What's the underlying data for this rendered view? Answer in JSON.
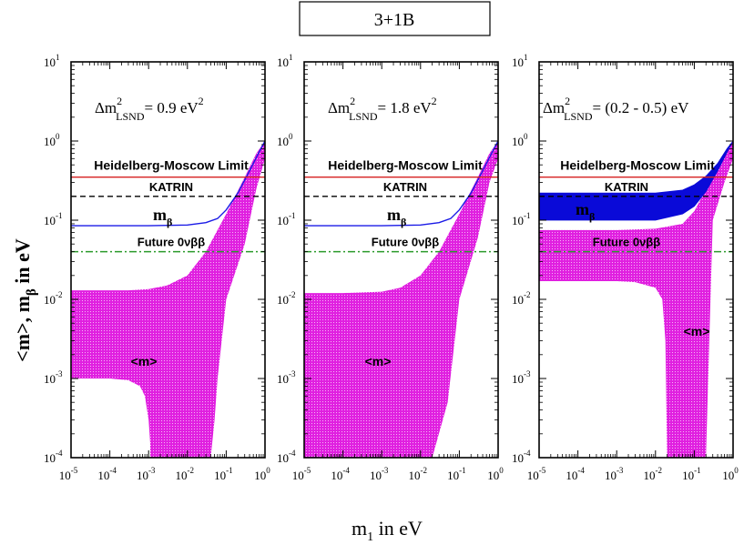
{
  "figure": {
    "title": "3+1B",
    "xlabel_main": "m",
    "xlabel_sub": "1",
    "xlabel_rest": " in eV",
    "ylabel_parts": [
      "<m>, m",
      "β",
      " in eV"
    ]
  },
  "chart_data": [
    {
      "type": "area",
      "panel": 1,
      "xscale": "log",
      "yscale": "log",
      "xlim": [
        1e-05,
        1
      ],
      "ylim": [
        0.0001,
        10
      ],
      "xticks": [
        1e-05,
        0.0001,
        0.001,
        0.01,
        0.1,
        1
      ],
      "yticks": [
        0.0001,
        0.001,
        0.01,
        0.1,
        1,
        10
      ],
      "annotation": {
        "prefix": "Δm",
        "sup": "2",
        "sub": "LSND",
        "value": "= 0.9 eV",
        "value_sup": "2"
      },
      "lines": [
        {
          "name": "Heidelberg-Moscow Limit",
          "y": 0.35,
          "color": "#d62020",
          "style": "solid"
        },
        {
          "name": "KATRIN",
          "y": 0.2,
          "color": "#000000",
          "style": "dashed"
        },
        {
          "name": "Future 0νββ",
          "y": 0.04,
          "color": "#2a9a2a",
          "style": "dashdot"
        }
      ],
      "mbeta": {
        "label": "m",
        "label_sub": "β",
        "type": "line",
        "color": "#1a1ae6",
        "x": [
          1e-05,
          0.001,
          0.01,
          0.03,
          0.06,
          0.1,
          0.2,
          0.4,
          0.7,
          1
        ],
        "y": [
          0.085,
          0.085,
          0.087,
          0.093,
          0.105,
          0.135,
          0.22,
          0.42,
          0.72,
          1.0
        ]
      },
      "mass_band": {
        "label": "<m>",
        "color": "#e020e0",
        "x_upper": [
          1e-05,
          0.0001,
          0.0003,
          0.001,
          0.003,
          0.01,
          0.03,
          0.1,
          0.3,
          0.6,
          1
        ],
        "y_upper": [
          0.013,
          0.013,
          0.013,
          0.0135,
          0.015,
          0.02,
          0.04,
          0.12,
          0.35,
          0.7,
          1.0
        ],
        "x_lower": [
          1e-05,
          0.0001,
          0.0003,
          0.0006,
          0.0008,
          0.001,
          0.0011,
          0.0011,
          0.04,
          0.05,
          0.06,
          0.1,
          0.3,
          0.6,
          1
        ],
        "y_lower": [
          0.001,
          0.001,
          0.00095,
          0.0008,
          0.0006,
          0.0003,
          0.00015,
          0.0001,
          0.0001,
          0.0003,
          0.001,
          0.01,
          0.05,
          0.25,
          0.6
        ]
      }
    },
    {
      "type": "area",
      "panel": 2,
      "xscale": "log",
      "yscale": "log",
      "xlim": [
        1e-05,
        1
      ],
      "ylim": [
        0.0001,
        10
      ],
      "xticks": [
        1e-05,
        0.0001,
        0.001,
        0.01,
        0.1,
        1
      ],
      "yticks": [
        0.0001,
        0.001,
        0.01,
        0.1,
        1,
        10
      ],
      "annotation": {
        "prefix": "Δm",
        "sup": "2",
        "sub": "LSND",
        "value": "= 1.8 eV",
        "value_sup": "2"
      },
      "lines": [
        {
          "name": "Heidelberg-Moscow Limit",
          "y": 0.35,
          "color": "#d62020",
          "style": "solid"
        },
        {
          "name": "KATRIN",
          "y": 0.2,
          "color": "#000000",
          "style": "dashed"
        },
        {
          "name": "Future 0νββ",
          "y": 0.04,
          "color": "#2a9a2a",
          "style": "dashdot"
        }
      ],
      "mbeta": {
        "label": "m",
        "label_sub": "β",
        "type": "line",
        "color": "#1a1ae6",
        "x": [
          1e-05,
          0.001,
          0.01,
          0.03,
          0.06,
          0.1,
          0.2,
          0.4,
          0.7,
          1
        ],
        "y": [
          0.085,
          0.085,
          0.087,
          0.093,
          0.105,
          0.135,
          0.22,
          0.42,
          0.72,
          1.0
        ]
      },
      "mass_band": {
        "label": "<m>",
        "color": "#e020e0",
        "x_upper": [
          1e-05,
          0.0001,
          0.001,
          0.003,
          0.01,
          0.03,
          0.1,
          0.3,
          0.6,
          1
        ],
        "y_upper": [
          0.012,
          0.012,
          0.0125,
          0.014,
          0.02,
          0.04,
          0.12,
          0.35,
          0.7,
          1.0
        ],
        "x_lower": [
          1e-05,
          0.0001,
          0.001,
          0.003,
          0.01,
          0.02,
          0.05,
          0.1,
          0.3,
          0.6,
          1
        ],
        "y_lower": [
          0.0001,
          0.0001,
          0.0001,
          0.0001,
          0.0001,
          0.0001,
          0.0005,
          0.01,
          0.06,
          0.3,
          0.6
        ]
      }
    },
    {
      "type": "area",
      "panel": 3,
      "xscale": "log",
      "yscale": "log",
      "xlim": [
        1e-05,
        1
      ],
      "ylim": [
        0.0001,
        10
      ],
      "xticks": [
        1e-05,
        0.0001,
        0.001,
        0.01,
        0.1,
        1
      ],
      "yticks": [
        0.0001,
        0.001,
        0.01,
        0.1,
        1,
        10
      ],
      "annotation": {
        "prefix": "Δm",
        "sup": "2",
        "sub": "LSND",
        "value": "= (0.2 - 0.5) eV",
        "value_sup": ""
      },
      "lines": [
        {
          "name": "Heidelberg-Moscow Limit",
          "y": 0.35,
          "color": "#d62020",
          "style": "solid"
        },
        {
          "name": "KATRIN",
          "y": 0.2,
          "color": "#000000",
          "style": "dashed"
        },
        {
          "name": "Future 0νββ",
          "y": 0.04,
          "color": "#2a9a2a",
          "style": "dashdot"
        }
      ],
      "mbeta": {
        "label": "m",
        "label_sub": "β",
        "type": "band",
        "color": "#0a0ad8",
        "x_upper": [
          1e-05,
          0.01,
          0.05,
          0.1,
          0.2,
          0.4,
          0.7,
          1
        ],
        "y_upper": [
          0.22,
          0.22,
          0.24,
          0.28,
          0.36,
          0.52,
          0.8,
          1.0
        ],
        "x_lower": [
          1e-05,
          0.01,
          0.05,
          0.1,
          0.2,
          0.4,
          0.7,
          1
        ],
        "y_lower": [
          0.1,
          0.1,
          0.12,
          0.15,
          0.23,
          0.42,
          0.72,
          1.0
        ]
      },
      "mass_band": {
        "label": "<m>",
        "color": "#e020e0",
        "x_upper": [
          1e-05,
          0.001,
          0.01,
          0.05,
          0.1,
          0.3,
          0.6,
          1
        ],
        "y_upper": [
          0.075,
          0.075,
          0.078,
          0.09,
          0.13,
          0.35,
          0.7,
          1.0
        ],
        "x_lower": [
          1e-05,
          0.0001,
          0.001,
          0.003,
          0.01,
          0.015,
          0.018,
          0.02,
          0.1,
          0.15,
          0.2,
          0.3,
          0.6,
          1
        ],
        "y_lower": [
          0.017,
          0.017,
          0.017,
          0.0165,
          0.014,
          0.01,
          0.003,
          0.0001,
          0.0001,
          0.0001,
          0.0001,
          0.1,
          0.3,
          0.6
        ]
      }
    }
  ]
}
